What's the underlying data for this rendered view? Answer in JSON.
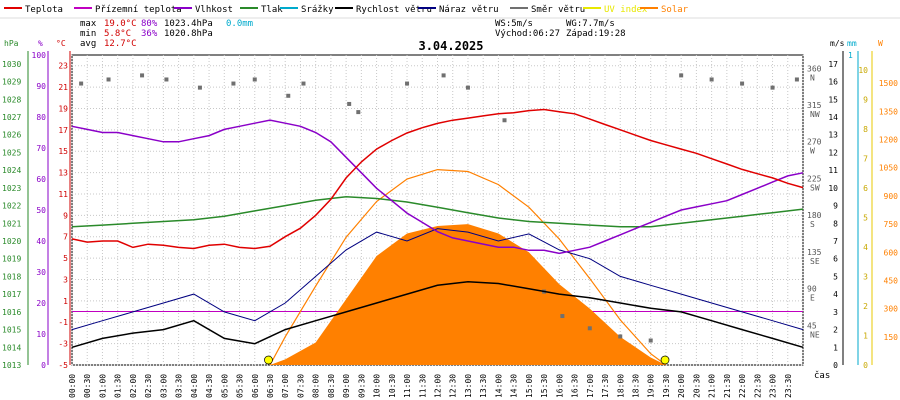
{
  "chart_data": {
    "type": "line",
    "title": "3.04.2025",
    "legend": [
      {
        "label": "Teplota",
        "color": "#e00000"
      },
      {
        "label": "Přízemní teplota",
        "color": "#c000c0"
      },
      {
        "label": "Vlhkost",
        "color": "#8a00c8"
      },
      {
        "label": "Tlak",
        "color": "#2a8a2a"
      },
      {
        "label": "Srážky",
        "color": "#00aacc"
      },
      {
        "label": "Rychlost větru",
        "color": "#000000"
      },
      {
        "label": "Náraz větru",
        "color": "#000080"
      },
      {
        "label": "Směr větru",
        "color": "#707070"
      },
      {
        "label": "UV index",
        "color": "#e8e800"
      },
      {
        "label": "Solar",
        "color": "#ff8000"
      }
    ],
    "stats": {
      "max_label": "max",
      "max_temp": "19.0°C",
      "max_hum": "80%",
      "max_press": "1023.4hPa",
      "rain": "0.0mm",
      "min_label": "min",
      "min_temp": "5.8°C",
      "min_hum": "36%",
      "min_press": "1020.8hPa",
      "avg_label": "avg",
      "avg_temp": "12.7°C",
      "ws": "WS:5m/s",
      "wg": "WG:7.7m/s",
      "sunrise": "Východ:06:27",
      "sunset": "Západ:19:28"
    },
    "axes": {
      "hpa_unit": "hPa",
      "pct_unit": "%",
      "c_unit": "°C",
      "ms_unit": "m/s",
      "mm_unit": "mm",
      "w_unit": "W",
      "hpa_ticks": [
        "1030",
        "1029",
        "1028",
        "1027",
        "1026",
        "1025",
        "1024",
        "1023",
        "1022",
        "1021",
        "1020",
        "1019",
        "1018",
        "1017",
        "1016",
        "1015",
        "1014",
        "1013"
      ],
      "pct_ticks": [
        "100",
        "90",
        "80",
        "70",
        "60",
        "50",
        "40",
        "30",
        "20",
        "10",
        "0"
      ],
      "c_ticks": [
        "23",
        "21",
        "19",
        "17",
        "15",
        "13",
        "11",
        "9",
        "7",
        "5",
        "3",
        "1",
        "-1",
        "-3",
        "-5"
      ],
      "dir_ticks": [
        {
          "deg": "360",
          "lbl": "N"
        },
        {
          "deg": "315",
          "lbl": "NW"
        },
        {
          "deg": "270",
          "lbl": "W"
        },
        {
          "deg": "225",
          "lbl": "SW"
        },
        {
          "deg": "180",
          "lbl": "S"
        },
        {
          "deg": "135",
          "lbl": "SE"
        },
        {
          "deg": "90",
          "lbl": "E"
        },
        {
          "deg": "45",
          "lbl": "NE"
        }
      ],
      "ms_ticks": [
        "17",
        "16",
        "15",
        "14",
        "13",
        "12",
        "11",
        "10",
        "9",
        "8",
        "7",
        "6",
        "5",
        "4",
        "3",
        "2",
        "1",
        "0"
      ],
      "mm_top": "1",
      "uv_ticks": [
        "10",
        "9",
        "8",
        "7",
        "6",
        "5",
        "4",
        "3",
        "2",
        "1",
        "0"
      ],
      "w_ticks": [
        "1500",
        "1350",
        "1200",
        "1050",
        "900",
        "750",
        "600",
        "450",
        "300",
        "150"
      ],
      "time_ticks": [
        "00:00",
        "00:30",
        "01:00",
        "01:30",
        "02:00",
        "02:30",
        "03:00",
        "03:30",
        "04:00",
        "04:30",
        "05:00",
        "05:30",
        "06:00",
        "06:30",
        "07:00",
        "07:30",
        "08:00",
        "08:30",
        "09:00",
        "09:30",
        "10:00",
        "10:30",
        "11:00",
        "11:30",
        "12:00",
        "12:30",
        "13:00",
        "13:30",
        "14:00",
        "14:30",
        "15:00",
        "15:30",
        "16:00",
        "16:30",
        "17:00",
        "17:30",
        "18:00",
        "18:30",
        "19:00",
        "19:30",
        "20:00",
        "20:30",
        "21:00",
        "21:30",
        "22:00",
        "22:30",
        "23:00",
        "23:30"
      ],
      "time_unit": "čas"
    },
    "ylim_temp": [
      -5,
      24
    ],
    "ylim_pressure": [
      1013,
      1030.5
    ],
    "ylim_humidity": [
      0,
      100
    ],
    "ylim_wind": [
      0,
      17.5
    ],
    "ylim_solar": [
      0,
      1650
    ],
    "series": [
      {
        "name": "Teplota",
        "x": [
          0,
          0.5,
          1,
          1.5,
          2,
          2.5,
          3,
          3.5,
          4,
          4.5,
          5,
          5.5,
          6,
          6.5,
          7,
          7.5,
          8,
          8.5,
          9,
          9.5,
          10,
          10.5,
          11,
          11.5,
          12,
          12.5,
          13,
          13.5,
          14,
          14.5,
          15,
          15.5,
          16,
          16.5,
          17,
          17.5,
          18,
          18.5,
          19,
          19.5,
          20,
          20.5,
          21,
          21.5,
          22,
          22.5,
          23,
          23.5,
          24
        ],
        "values": [
          6.8,
          6.5,
          6.6,
          6.6,
          6.0,
          6.3,
          6.2,
          6.0,
          5.9,
          6.2,
          6.3,
          6.0,
          5.9,
          6.1,
          7.0,
          7.8,
          9.0,
          10.5,
          12.5,
          14.0,
          15.2,
          16.0,
          16.7,
          17.2,
          17.6,
          17.9,
          18.1,
          18.3,
          18.5,
          18.6,
          18.8,
          18.9,
          18.7,
          18.5,
          18.0,
          17.5,
          17.0,
          16.5,
          16.0,
          15.6,
          15.2,
          14.8,
          14.3,
          13.8,
          13.3,
          12.9,
          12.5,
          12.0,
          11.6
        ]
      },
      {
        "name": "Tlak",
        "x": [
          0,
          1,
          2,
          3,
          4,
          5,
          6,
          7,
          8,
          9,
          10,
          11,
          12,
          13,
          14,
          15,
          16,
          17,
          18,
          19,
          20,
          21,
          22,
          23,
          24
        ],
        "values": [
          1020.8,
          1020.9,
          1021.0,
          1021.1,
          1021.2,
          1021.4,
          1021.7,
          1022.0,
          1022.3,
          1022.5,
          1022.4,
          1022.2,
          1021.9,
          1021.6,
          1021.3,
          1021.1,
          1021.0,
          1020.9,
          1020.8,
          1020.8,
          1021.0,
          1021.2,
          1021.4,
          1021.6,
          1021.8
        ]
      },
      {
        "name": "Vlhkost",
        "x": [
          0,
          0.5,
          1,
          1.5,
          2,
          2.5,
          3,
          3.5,
          4,
          4.5,
          5,
          5.5,
          6,
          6.5,
          7,
          7.5,
          8,
          8.5,
          9,
          9.5,
          10,
          10.5,
          11,
          11.5,
          12,
          12.5,
          13,
          13.5,
          14,
          14.5,
          15,
          15.5,
          16,
          16.5,
          17,
          17.5,
          18,
          18.5,
          19,
          19.5,
          20,
          20.5,
          21,
          21.5,
          22,
          22.5,
          23,
          23.5,
          24
        ],
        "values": [
          77,
          76,
          75,
          75,
          74,
          73,
          72,
          72,
          73,
          74,
          76,
          77,
          78,
          79,
          78,
          77,
          75,
          72,
          67,
          62,
          57,
          53,
          49,
          46,
          43,
          41,
          40,
          39,
          38,
          38,
          37,
          37,
          36,
          37,
          38,
          40,
          42,
          44,
          46,
          48,
          50,
          51,
          52,
          53,
          55,
          57,
          59,
          61,
          62
        ]
      },
      {
        "name": "Rychlost větru",
        "x": [
          0,
          1,
          2,
          3,
          4,
          5,
          6,
          7,
          8,
          9,
          10,
          11,
          12,
          13,
          14,
          15,
          16,
          17,
          18,
          19,
          20,
          21,
          22,
          23,
          24
        ],
        "values": [
          1.0,
          1.5,
          1.8,
          2.0,
          2.5,
          1.5,
          1.2,
          2.0,
          2.5,
          3.0,
          3.5,
          4.0,
          4.5,
          4.7,
          4.6,
          4.3,
          4.0,
          3.8,
          3.5,
          3.2,
          3.0,
          2.5,
          2.0,
          1.5,
          1.0
        ]
      },
      {
        "name": "Náraz větru",
        "x": [
          0,
          1,
          2,
          3,
          4,
          5,
          6,
          7,
          8,
          9,
          10,
          11,
          12,
          13,
          14,
          15,
          16,
          17,
          18,
          19,
          20,
          21,
          22,
          23,
          24
        ],
        "values": [
          2.0,
          2.5,
          3.0,
          3.5,
          4.0,
          3.0,
          2.5,
          3.5,
          5.0,
          6.5,
          7.5,
          7.0,
          7.7,
          7.5,
          7.0,
          7.4,
          6.5,
          6.0,
          5.0,
          4.5,
          4.0,
          3.5,
          3.0,
          2.5,
          2.0
        ]
      },
      {
        "name": "Solar",
        "x": [
          6.5,
          7,
          8,
          9,
          10,
          11,
          12,
          13,
          14,
          15,
          16,
          17,
          18,
          19,
          19.5
        ],
        "values": [
          0,
          30,
          120,
          350,
          580,
          700,
          740,
          750,
          700,
          600,
          430,
          300,
          150,
          40,
          0
        ]
      },
      {
        "name": "Solar theoretical",
        "x": [
          6.5,
          7,
          8,
          9,
          10,
          11,
          12,
          13,
          14,
          15,
          16,
          17,
          18,
          19,
          19.5
        ],
        "values": [
          0,
          150,
          420,
          680,
          870,
          990,
          1040,
          1030,
          960,
          840,
          670,
          460,
          240,
          60,
          0
        ]
      }
    ],
    "wind_direction_points": [
      [
        0.3,
        345
      ],
      [
        1.2,
        350
      ],
      [
        2.3,
        355
      ],
      [
        3.1,
        350
      ],
      [
        4.2,
        340
      ],
      [
        5.3,
        345
      ],
      [
        6.0,
        350
      ],
      [
        7.1,
        330
      ],
      [
        7.6,
        345
      ],
      [
        9.1,
        320
      ],
      [
        9.4,
        310
      ],
      [
        11.0,
        345
      ],
      [
        12.2,
        355
      ],
      [
        13.0,
        340
      ],
      [
        14.2,
        300
      ],
      [
        15.5,
        90
      ],
      [
        16.1,
        60
      ],
      [
        17.0,
        45
      ],
      [
        18.0,
        35
      ],
      [
        19.0,
        30
      ],
      [
        20.0,
        355
      ],
      [
        21.0,
        350
      ],
      [
        22.0,
        345
      ],
      [
        23.0,
        340
      ],
      [
        23.8,
        350
      ]
    ],
    "uv_markers": [
      "6:27",
      "19:28"
    ]
  }
}
